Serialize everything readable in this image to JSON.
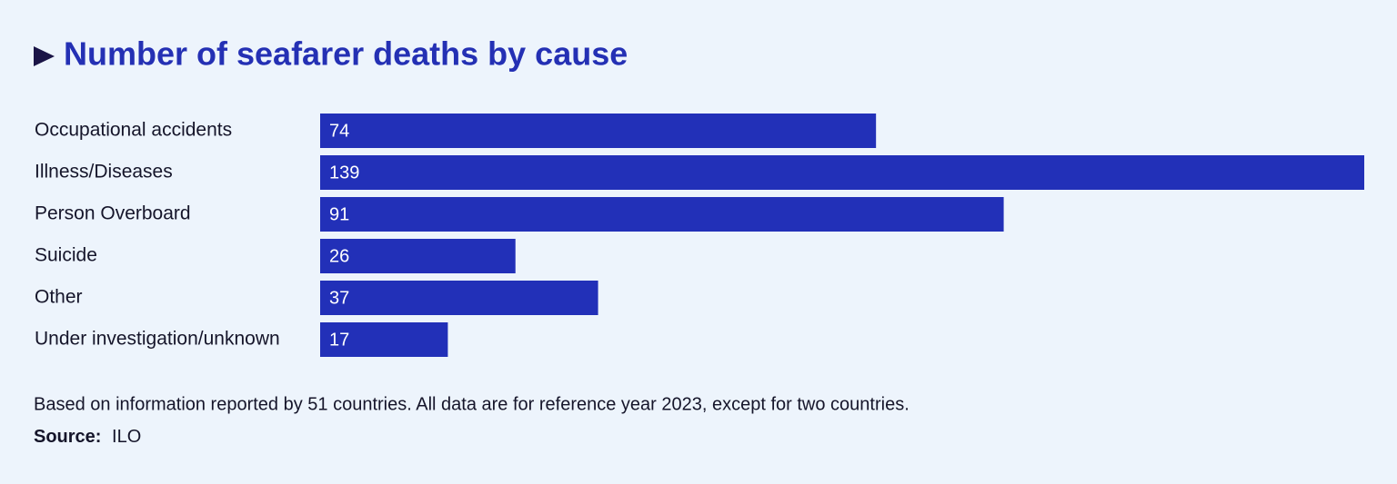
{
  "chart_data": {
    "type": "bar",
    "orientation": "horizontal",
    "title": "Number of seafarer deaths by cause",
    "categories": [
      "Occupational accidents",
      "Illness/Diseases",
      "Person Overboard",
      "Suicide",
      "Other",
      "Under investigation/unknown"
    ],
    "values": [
      74,
      139,
      91,
      26,
      37,
      17
    ],
    "color": "#2230b8",
    "note": "Based on information reported by 51 countries. All data are for reference year 2023, except for two countries.",
    "source_label": "Source:",
    "source": "ILO"
  }
}
